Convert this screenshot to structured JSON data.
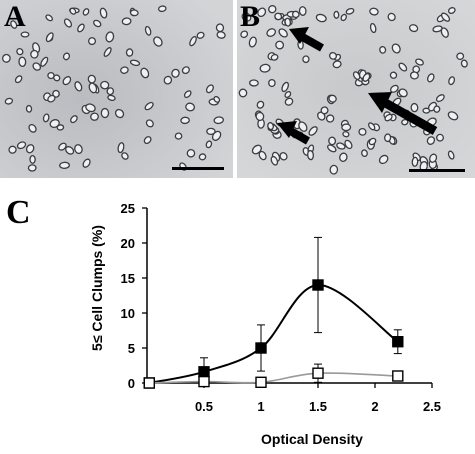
{
  "figure": {
    "panel_a_letter": "A",
    "panel_b_letter": "B",
    "panel_c_letter": "C"
  },
  "chart_data": {
    "type": "line",
    "title": "",
    "xlabel": "Optical Density",
    "ylabel": "5≤ Cell Clumps (%)",
    "xlim": [
      0,
      2.5
    ],
    "ylim": [
      0,
      25
    ],
    "x_ticks": [
      0.5,
      1,
      1.5,
      2,
      2.5
    ],
    "x_tick_labels": [
      "0.5",
      "1",
      "1.5",
      "2",
      "2.5"
    ],
    "y_ticks": [
      0,
      5,
      10,
      15,
      20,
      25
    ],
    "y_tick_labels": [
      "0",
      "5",
      "10",
      "15",
      "20",
      "25"
    ],
    "grid": false,
    "legend": "none",
    "series": [
      {
        "marker": "filled-square",
        "color": "#000000",
        "x": [
          0.02,
          0.5,
          1.0,
          1.5,
          2.2
        ],
        "y": [
          0,
          1.6,
          5.0,
          14.0,
          5.9
        ],
        "err": [
          0,
          2.0,
          3.3,
          6.8,
          1.7
        ]
      },
      {
        "marker": "open-square",
        "color": "#999999",
        "x": [
          0.02,
          0.5,
          1.0,
          1.5,
          2.2
        ],
        "y": [
          0,
          0.2,
          0.1,
          1.4,
          1.0
        ],
        "err": [
          0,
          0,
          0,
          1.3,
          0
        ]
      }
    ]
  }
}
